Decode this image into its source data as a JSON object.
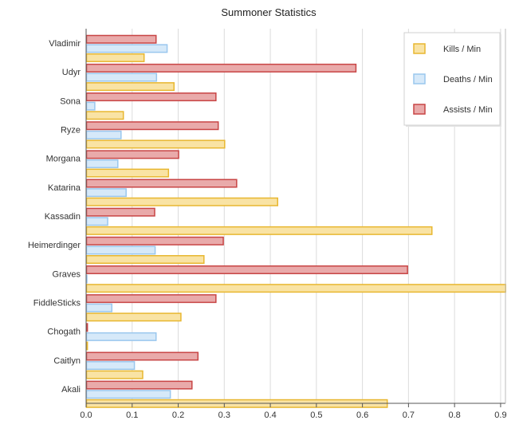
{
  "chart_data": {
    "type": "bar",
    "orientation": "horizontal",
    "title": "Summoner Statistics",
    "xlabel": "",
    "ylabel": "",
    "xlim": [
      0,
      0.9
    ],
    "x_ticks": [
      "0.0",
      "0.1",
      "0.2",
      "0.3",
      "0.4",
      "0.5",
      "0.6",
      "0.7",
      "0.8",
      "0.9"
    ],
    "grid": "vertical",
    "legend_position": "top-right",
    "categories": [
      "Vladimir",
      "Udyr",
      "Sona",
      "Ryze",
      "Morgana",
      "Katarina",
      "Kassadin",
      "Heimerdinger",
      "Graves",
      "FiddleSticks",
      "Chogath",
      "Caitlyn",
      "Akali"
    ],
    "series": [
      {
        "name": "Kills / Min",
        "color_fill": "#f9e3a4",
        "color_stroke": "#e8b730",
        "values": [
          0.125,
          0.19,
          0.08,
          0.3,
          0.178,
          0.415,
          0.75,
          0.255,
          0.91,
          0.205,
          0.002,
          0.122,
          0.653
        ]
      },
      {
        "name": "Deaths / Min",
        "color_fill": "#d6e9f9",
        "color_stroke": "#9ac7ee",
        "values": [
          0.175,
          0.152,
          0.018,
          0.075,
          0.068,
          0.086,
          0.046,
          0.149,
          0.0,
          0.055,
          0.151,
          0.104,
          0.182
        ]
      },
      {
        "name": "Assists / Min",
        "color_fill": "#e9aaaa",
        "color_stroke": "#c84545",
        "values": [
          0.151,
          0.585,
          0.281,
          0.286,
          0.2,
          0.326,
          0.148,
          0.297,
          0.697,
          0.281,
          0.002,
          0.242,
          0.229
        ]
      }
    ]
  }
}
